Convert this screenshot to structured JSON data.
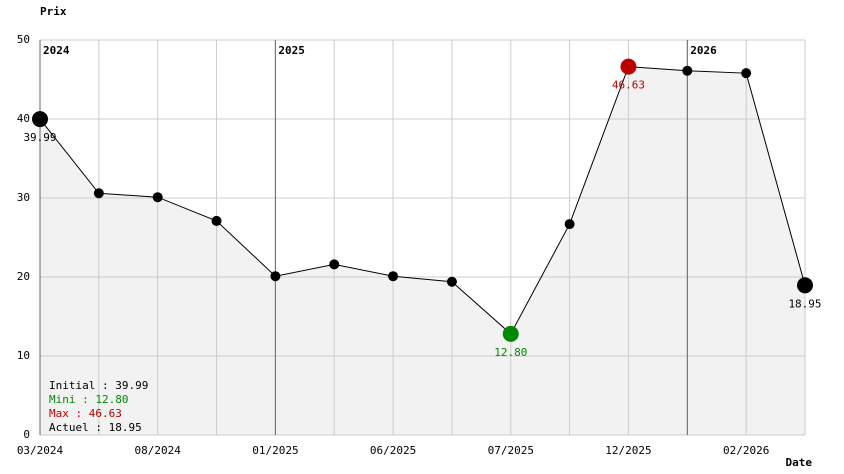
{
  "chart_data": {
    "type": "line",
    "y_label": "Prix",
    "x_label": "Date",
    "categories": [
      "03/2024",
      null,
      "08/2024",
      null,
      "01/2025",
      null,
      "06/2025",
      null,
      "07/2025",
      null,
      "12/2025",
      null,
      "02/2026",
      null
    ],
    "year_labels": [
      "2024",
      null,
      null,
      null,
      "2025",
      null,
      null,
      null,
      null,
      null,
      null,
      "2026",
      null,
      null
    ],
    "values": [
      39.99,
      30.6,
      30.1,
      27.1,
      20.1,
      21.6,
      20.1,
      19.4,
      12.8,
      26.7,
      46.63,
      46.1,
      45.8,
      18.95
    ],
    "value_labels": [
      "39.99",
      null,
      null,
      null,
      null,
      null,
      null,
      null,
      "12.80",
      null,
      "46.63",
      null,
      null,
      "18.95"
    ],
    "point_colors": [
      "#000000",
      "#000000",
      "#000000",
      "#000000",
      "#000000",
      "#000000",
      "#000000",
      "#000000",
      "#008800",
      "#000000",
      "#bb0000",
      "#000000",
      "#000000",
      "#000000"
    ],
    "highlight": [
      true,
      false,
      false,
      false,
      false,
      false,
      false,
      false,
      true,
      false,
      true,
      false,
      false,
      true
    ],
    "ylim": [
      0,
      50
    ],
    "yticks": [
      0,
      10,
      20,
      30,
      40,
      50
    ],
    "grid": true,
    "color": "#000000",
    "fill": "#f2f2f2",
    "summary": [
      {
        "text": "Initial : 39.99",
        "color": "#000000"
      },
      {
        "text": "Mini : 12.80",
        "color": "#008800"
      },
      {
        "text": "Max : 46.63",
        "color": "#bb0000"
      },
      {
        "text": "Actuel : 18.95",
        "color": "#000000"
      }
    ]
  }
}
